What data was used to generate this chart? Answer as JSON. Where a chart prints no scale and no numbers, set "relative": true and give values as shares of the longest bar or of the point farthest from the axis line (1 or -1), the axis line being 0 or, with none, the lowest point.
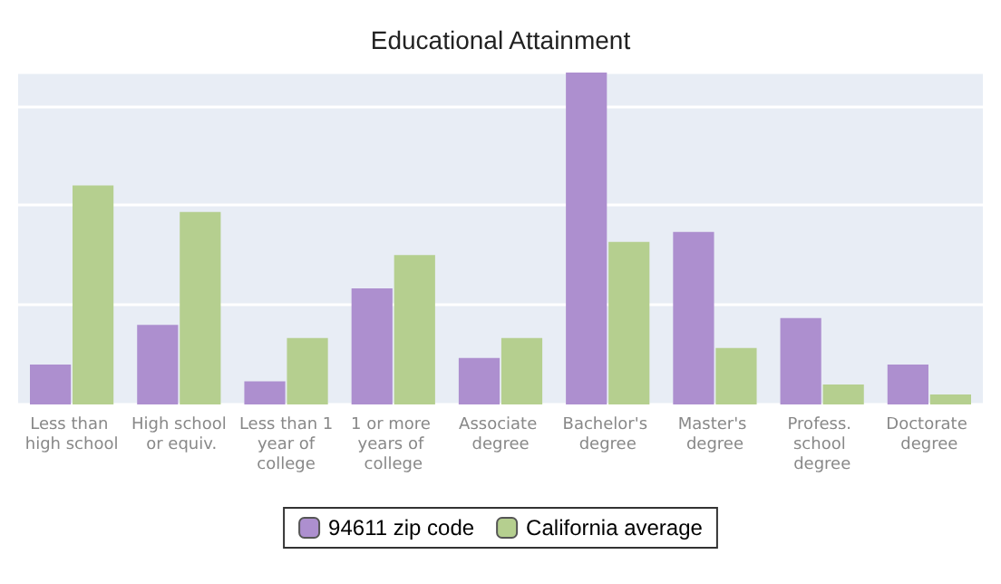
{
  "chart_data": {
    "type": "bar",
    "title": "Educational Attainment",
    "relative": true,
    "grid": "y",
    "legend": "bottom",
    "categories": [
      "Less than high school",
      "High school or equiv.",
      "Less than 1 year of college",
      "1 or more years of college",
      "Associate degree",
      "Bachelor's degree",
      "Master's degree",
      "Profess. school degree",
      "Doctorate degree"
    ],
    "series": [
      {
        "name": "94611 zip code",
        "color": "#ad8fcf",
        "values": [
          0.12,
          0.24,
          0.07,
          0.35,
          0.14,
          1,
          0.52,
          0.26,
          0.12
        ]
      },
      {
        "name": "California average",
        "color": "#b5cf8f",
        "values": [
          0.66,
          0.58,
          0.2,
          0.45,
          0.2,
          0.49,
          0.17,
          0.06,
          0.03
        ]
      }
    ]
  }
}
